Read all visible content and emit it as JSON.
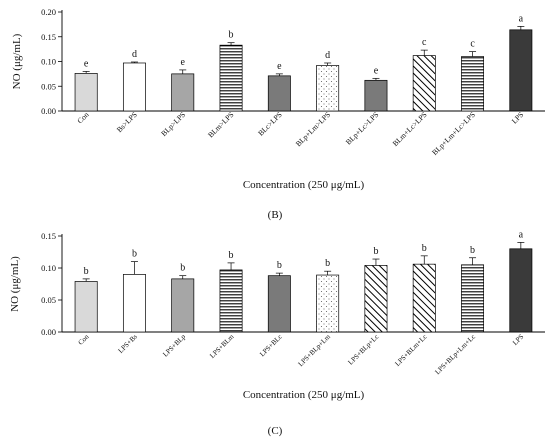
{
  "chart_data": [
    {
      "type": "bar",
      "panel_label": "(B)",
      "ylabel": "NO (μg/mL)",
      "xlabel": "Concentration (250 μg/mL)",
      "ylim": [
        0,
        0.2
      ],
      "yticks": [
        "0.00",
        "0.05",
        "0.10",
        "0.15",
        "0.20"
      ],
      "categories": [
        "Con",
        "Bs>LPS",
        "BLp>LPS",
        "BLm>LPS",
        "BLc>LPS",
        "BLp+Lm>LPS",
        "BLp+Lc>LPS",
        "BLm+Lc>LPS",
        "BLp+Lm+Lc>LPS",
        "LPS"
      ],
      "values": [
        0.076,
        0.097,
        0.075,
        0.133,
        0.071,
        0.092,
        0.062,
        0.112,
        0.11,
        0.164
      ],
      "errors": [
        0.004,
        0.002,
        0.008,
        0.005,
        0.004,
        0.005,
        0.004,
        0.011,
        0.01,
        0.007
      ],
      "significance": [
        "e",
        "d",
        "e",
        "b",
        "e",
        "d",
        "e",
        "c",
        "c",
        "a"
      ],
      "fills": [
        "light-gray",
        "white",
        "gray",
        "horizontal-lines",
        "dark-gray",
        "dots",
        "dark-gray",
        "diagonal-lines",
        "horizontal-lines",
        "black"
      ]
    },
    {
      "type": "bar",
      "panel_label": "(C)",
      "ylabel": "NO (μg/mL)",
      "xlabel": "Concentration (250 μg/mL)",
      "ylim": [
        0,
        0.15
      ],
      "yticks": [
        "0.00",
        "0.05",
        "0.10",
        "0.15"
      ],
      "categories": [
        "Con",
        "LPS+Bs",
        "LPS+BLp",
        "LPS+BLm",
        "LPS+BLc",
        "LPS+BLp+Lm",
        "LPS+BLp+Lc",
        "LPS+BLm+Lc",
        "LPS+BLp+Lm+Lc",
        "LPS"
      ],
      "values": [
        0.079,
        0.09,
        0.083,
        0.097,
        0.088,
        0.089,
        0.104,
        0.106,
        0.105,
        0.13
      ],
      "errors": [
        0.004,
        0.02,
        0.005,
        0.011,
        0.004,
        0.006,
        0.01,
        0.013,
        0.011,
        0.01
      ],
      "significance": [
        "b",
        "b",
        "b",
        "b",
        "b",
        "b",
        "b",
        "b",
        "b",
        "a"
      ],
      "fills": [
        "light-gray",
        "white",
        "gray",
        "horizontal-lines",
        "dark-gray",
        "dots",
        "diagonal-lines",
        "diagonal-lines",
        "horizontal-lines",
        "black"
      ]
    }
  ]
}
